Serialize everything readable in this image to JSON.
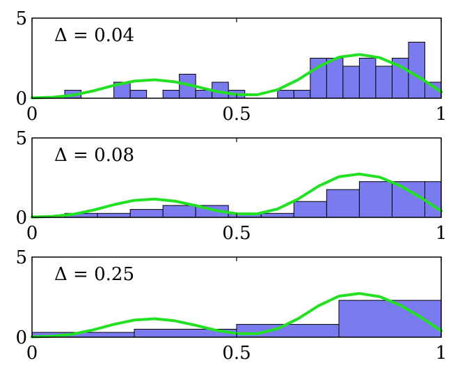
{
  "chart_data": [
    {
      "type": "bar",
      "annotation": "Δ = 0.04",
      "bin_width": 0.04,
      "xlim": [
        0,
        1
      ],
      "ylim": [
        0,
        5
      ],
      "x_ticks": [
        "0",
        "0.5",
        "1"
      ],
      "y_ticks": [
        "0",
        "5"
      ],
      "bins": [
        {
          "x0": 0.08,
          "x1": 0.12,
          "value": 0.5
        },
        {
          "x0": 0.2,
          "x1": 0.24,
          "value": 1.0
        },
        {
          "x0": 0.24,
          "x1": 0.28,
          "value": 0.5
        },
        {
          "x0": 0.32,
          "x1": 0.36,
          "value": 0.5
        },
        {
          "x0": 0.36,
          "x1": 0.4,
          "value": 1.5
        },
        {
          "x0": 0.4,
          "x1": 0.44,
          "value": 0.5
        },
        {
          "x0": 0.44,
          "x1": 0.48,
          "value": 1.0
        },
        {
          "x0": 0.48,
          "x1": 0.52,
          "value": 0.5
        },
        {
          "x0": 0.6,
          "x1": 0.64,
          "value": 0.5
        },
        {
          "x0": 0.64,
          "x1": 0.68,
          "value": 0.5
        },
        {
          "x0": 0.68,
          "x1": 0.72,
          "value": 2.5
        },
        {
          "x0": 0.72,
          "x1": 0.76,
          "value": 2.5
        },
        {
          "x0": 0.76,
          "x1": 0.8,
          "value": 2.0
        },
        {
          "x0": 0.8,
          "x1": 0.84,
          "value": 2.5
        },
        {
          "x0": 0.84,
          "x1": 0.88,
          "value": 2.0
        },
        {
          "x0": 0.88,
          "x1": 0.92,
          "value": 2.5
        },
        {
          "x0": 0.92,
          "x1": 0.96,
          "value": 3.5
        },
        {
          "x0": 0.96,
          "x1": 1.0,
          "value": 1.0
        }
      ]
    },
    {
      "type": "bar",
      "annotation": "Δ = 0.08",
      "bin_width": 0.08,
      "xlim": [
        0,
        1
      ],
      "ylim": [
        0,
        5
      ],
      "x_ticks": [
        "0",
        "0.5",
        "1"
      ],
      "y_ticks": [
        "0",
        "5"
      ],
      "bins": [
        {
          "x0": 0.08,
          "x1": 0.16,
          "value": 0.25
        },
        {
          "x0": 0.16,
          "x1": 0.24,
          "value": 0.25
        },
        {
          "x0": 0.24,
          "x1": 0.32,
          "value": 0.5
        },
        {
          "x0": 0.32,
          "x1": 0.4,
          "value": 0.75
        },
        {
          "x0": 0.4,
          "x1": 0.48,
          "value": 0.75
        },
        {
          "x0": 0.48,
          "x1": 0.56,
          "value": 0.25
        },
        {
          "x0": 0.56,
          "x1": 0.64,
          "value": 0.25
        },
        {
          "x0": 0.64,
          "x1": 0.72,
          "value": 1.0
        },
        {
          "x0": 0.72,
          "x1": 0.8,
          "value": 1.75
        },
        {
          "x0": 0.8,
          "x1": 0.88,
          "value": 2.25
        },
        {
          "x0": 0.88,
          "x1": 0.96,
          "value": 2.25
        },
        {
          "x0": 0.96,
          "x1": 1.0,
          "value": 2.25
        }
      ]
    },
    {
      "type": "bar",
      "annotation": "Δ = 0.25",
      "bin_width": 0.25,
      "xlim": [
        0,
        1
      ],
      "ylim": [
        0,
        5
      ],
      "x_ticks": [
        "0",
        "0.5",
        "1"
      ],
      "y_ticks": [
        "0",
        "5"
      ],
      "bins": [
        {
          "x0": 0.0,
          "x1": 0.25,
          "value": 0.3
        },
        {
          "x0": 0.25,
          "x1": 0.5,
          "value": 0.5
        },
        {
          "x0": 0.5,
          "x1": 0.75,
          "value": 0.8
        },
        {
          "x0": 0.75,
          "x1": 1.0,
          "value": 2.3
        }
      ]
    }
  ],
  "density_curve": {
    "x": [
      0,
      0.05,
      0.1,
      0.15,
      0.2,
      0.25,
      0.3,
      0.35,
      0.4,
      0.45,
      0.5,
      0.55,
      0.6,
      0.65,
      0.7,
      0.75,
      0.8,
      0.85,
      0.9,
      0.95,
      1.0
    ],
    "y": [
      0.02,
      0.06,
      0.19,
      0.46,
      0.8,
      1.07,
      1.15,
      1.02,
      0.74,
      0.43,
      0.23,
      0.22,
      0.53,
      1.15,
      1.96,
      2.56,
      2.73,
      2.53,
      1.99,
      1.25,
      0.4
    ]
  },
  "colors": {
    "bar_fill": "#7b7bf0",
    "curve": "#22e022"
  }
}
